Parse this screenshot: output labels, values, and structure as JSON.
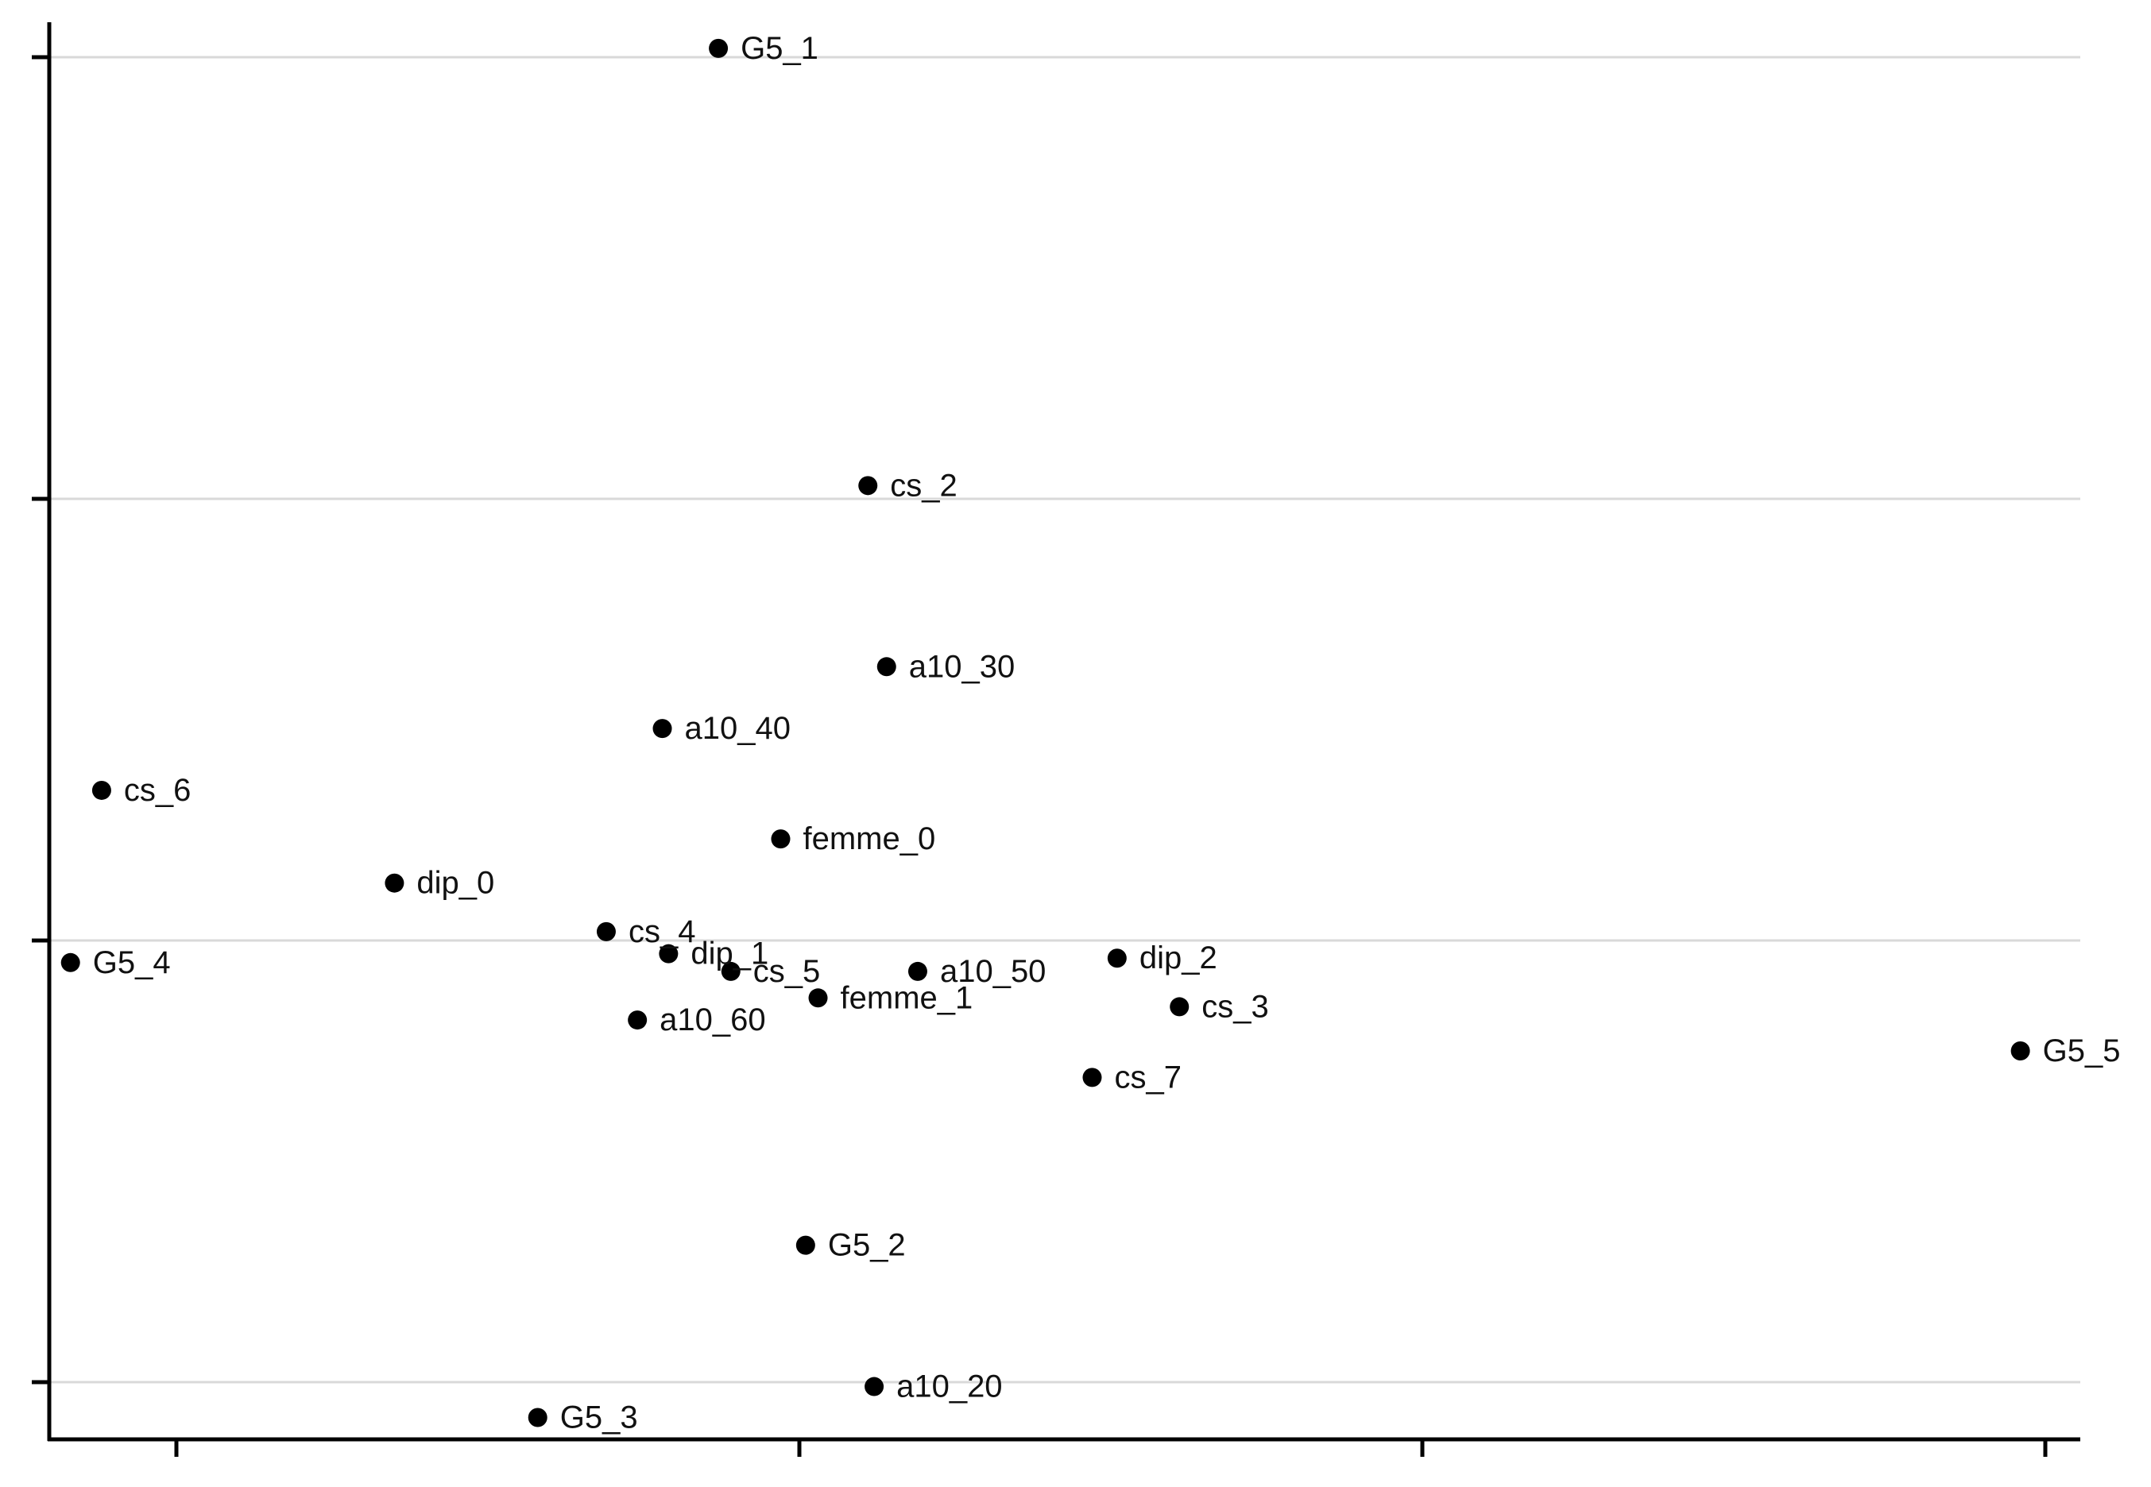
{
  "chart_data": {
    "type": "scatter",
    "title": "",
    "xlabel": "",
    "ylabel": "",
    "x_tick_labels": [],
    "y_tick_labels": [],
    "grid": "horizontal",
    "legend": "none",
    "colors": {
      "point": "#000000",
      "axis": "#000000",
      "grid": "#d9d9d9",
      "label": "#111111"
    },
    "xlim": [
      -0.2,
      3.05
    ],
    "ylim": [
      -1.1,
      2.1
    ],
    "x_ticks": [
      0,
      1,
      2,
      3
    ],
    "y_ticks": [
      -1,
      0,
      1,
      2
    ],
    "points": [
      {
        "label": "G5_1",
        "x": 0.87,
        "y": 2.02
      },
      {
        "label": "cs_2",
        "x": 1.11,
        "y": 1.03
      },
      {
        "label": "a10_30",
        "x": 1.14,
        "y": 0.62
      },
      {
        "label": "a10_40",
        "x": 0.78,
        "y": 0.48
      },
      {
        "label": "cs_6",
        "x": -0.12,
        "y": 0.34
      },
      {
        "label": "femme_0",
        "x": 0.97,
        "y": 0.23
      },
      {
        "label": "dip_0",
        "x": 0.35,
        "y": 0.13
      },
      {
        "label": "cs_4",
        "x": 0.69,
        "y": 0.02
      },
      {
        "label": "dip_1",
        "x": 0.79,
        "y": -0.03
      },
      {
        "label": "G5_4",
        "x": -0.17,
        "y": -0.05
      },
      {
        "label": "cs_5",
        "x": 0.89,
        "y": -0.07
      },
      {
        "label": "a10_50",
        "x": 1.19,
        "y": -0.07
      },
      {
        "label": "dip_2",
        "x": 1.51,
        "y": -0.04
      },
      {
        "label": "femme_1",
        "x": 1.03,
        "y": -0.13
      },
      {
        "label": "cs_3",
        "x": 1.61,
        "y": -0.15
      },
      {
        "label": "a10_60",
        "x": 0.74,
        "y": -0.18
      },
      {
        "label": "G5_5",
        "x": 2.96,
        "y": -0.25
      },
      {
        "label": "cs_7",
        "x": 1.47,
        "y": -0.31
      },
      {
        "label": "G5_2",
        "x": 1.01,
        "y": -0.69
      },
      {
        "label": "a10_20",
        "x": 1.12,
        "y": -1.01
      },
      {
        "label": "G5_3",
        "x": 0.58,
        "y": -1.08
      }
    ]
  }
}
